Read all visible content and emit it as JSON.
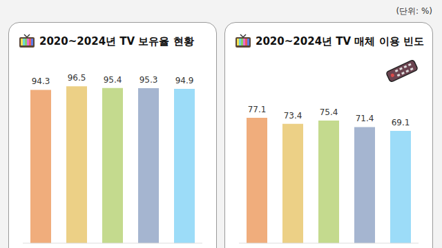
{
  "unit_label": "(단위: %)",
  "chart_data": [
    {
      "type": "bar",
      "title": "2020~2024년 TV 보유율 현황",
      "categories": [
        null,
        null,
        null,
        null,
        null
      ],
      "values": [
        94.3,
        96.5,
        95.4,
        95.3,
        94.9
      ],
      "colors": [
        "#f0ad7c",
        "#ecd086",
        "#c4da8e",
        "#a5b5d0",
        "#9cdcf8"
      ],
      "ylim": [
        0,
        100
      ],
      "yticks": [
        0,
        100
      ],
      "tick_labels": false,
      "data_labels": true,
      "grid": false
    },
    {
      "type": "bar",
      "title": "2020~2024년 TV 매체 이용 빈도",
      "categories": [
        null,
        null,
        null,
        null,
        null
      ],
      "values": [
        77.1,
        73.4,
        75.4,
        71.4,
        69.1
      ],
      "colors": [
        "#f0ad7c",
        "#ecd086",
        "#c4da8e",
        "#a5b5d0",
        "#9cdcf8"
      ],
      "ylim": [
        0,
        100
      ],
      "yticks": [
        0,
        100
      ],
      "tick_labels": false,
      "data_labels": true,
      "grid": false
    }
  ]
}
